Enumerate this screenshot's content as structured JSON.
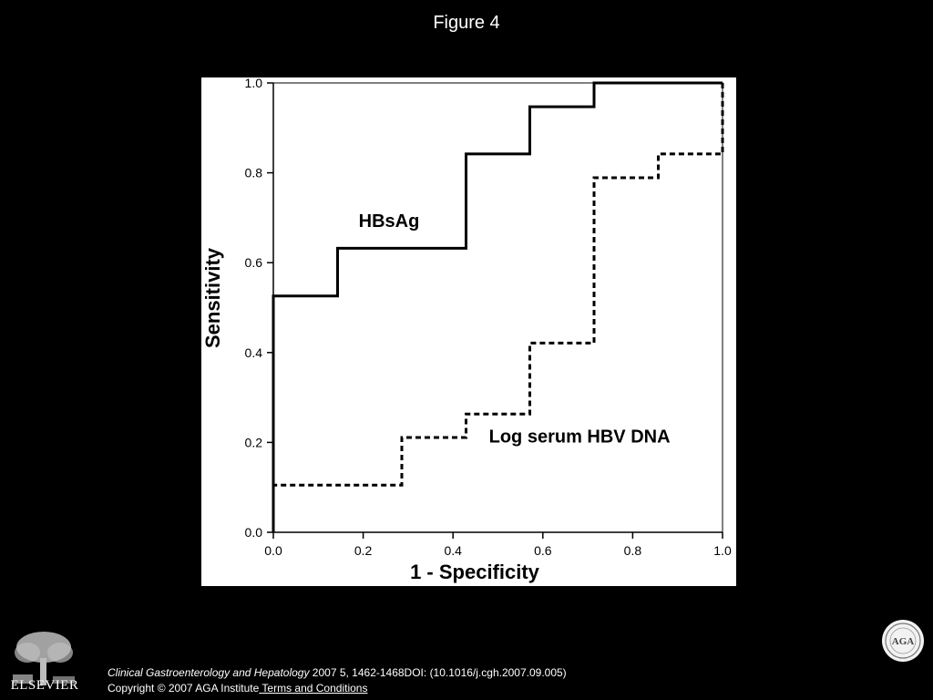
{
  "slide": {
    "title": "Figure 4",
    "publisher_name": "ELSEVIER",
    "seal_text": "AGA",
    "citation": {
      "journal": "Clinical Gastroenterology and Hepatology",
      "details": " 2007 5, 1462-1468DOI: (10.1016/j.cgh.2007.09.005)"
    },
    "copyright": "Copyright © 2007 AGA Institute",
    "terms_link": " Terms and Conditions",
    "icons": {
      "logo": "elsevier-tree-icon",
      "seal": "aga-seal-icon"
    }
  },
  "chart_data": {
    "type": "line",
    "xlabel": "1 - Specificity",
    "ylabel": "Sensitivity",
    "xlim": [
      0,
      1
    ],
    "ylim": [
      0,
      1
    ],
    "xticks": [
      "0.0",
      "0.2",
      "0.4",
      "0.6",
      "0.8",
      "1.0"
    ],
    "yticks": [
      "0.0",
      "0.2",
      "0.4",
      "0.6",
      "0.8",
      "1.0"
    ],
    "grid": false,
    "series": [
      {
        "name": "HBsAg",
        "style": "solid",
        "color": "#000000",
        "x": [
          0.0,
          0.0,
          0.143,
          0.143,
          0.429,
          0.429,
          0.571,
          0.571,
          0.714,
          0.714,
          1.0
        ],
        "y": [
          0.0,
          0.526,
          0.526,
          0.632,
          0.632,
          0.842,
          0.842,
          0.947,
          0.947,
          1.0,
          1.0
        ]
      },
      {
        "name": "Log serum HBV DNA",
        "style": "dashed",
        "color": "#000000",
        "x": [
          0.0,
          0.0,
          0.286,
          0.286,
          0.429,
          0.429,
          0.571,
          0.571,
          0.714,
          0.714,
          0.857,
          0.857,
          1.0,
          1.0
        ],
        "y": [
          0.0,
          0.105,
          0.105,
          0.211,
          0.211,
          0.263,
          0.263,
          0.421,
          0.421,
          0.789,
          0.789,
          0.842,
          0.842,
          1.0
        ]
      }
    ],
    "annotations": [
      {
        "text": "HBsAg",
        "x": 0.19,
        "y": 0.68
      },
      {
        "text": "Log serum HBV DNA",
        "x": 0.48,
        "y": 0.2
      }
    ]
  }
}
